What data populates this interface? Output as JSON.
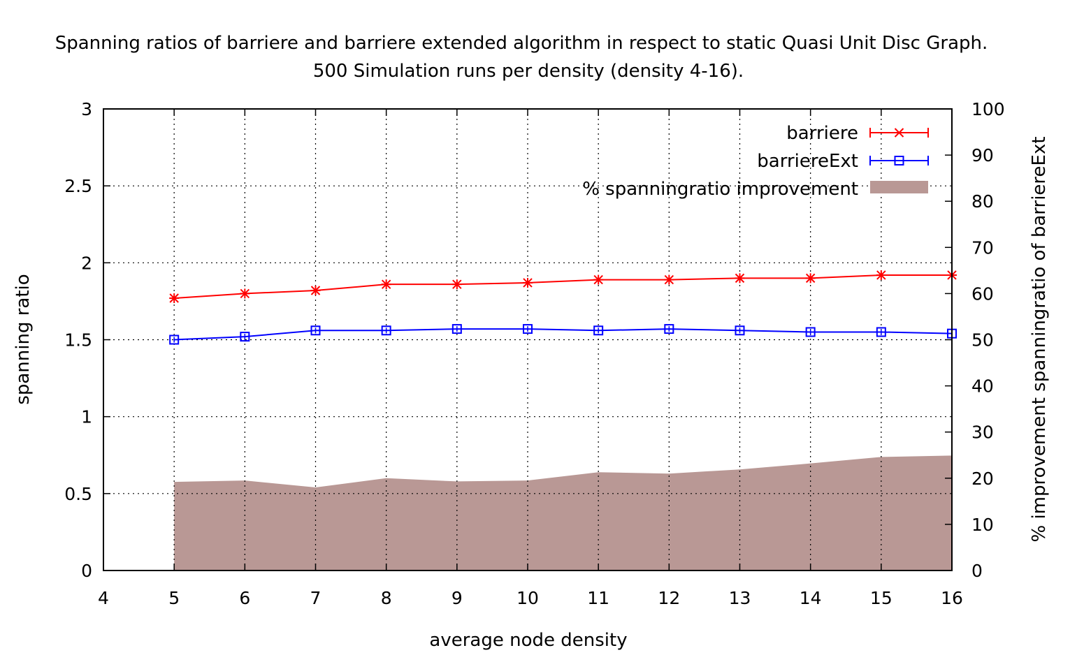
{
  "chart_data": {
    "type": "line",
    "title": "Spanning ratios of barriere and barriere extended algorithm in respect to static Quasi Unit Disc Graph.",
    "subtitle": "500 Simulation runs per density (density 4-16).",
    "xlabel": "average node density",
    "ylabel": "spanning ratio",
    "y2label": "% improvement spanningratio of barriereExt",
    "xlim": [
      4,
      16
    ],
    "ylim": [
      0,
      3
    ],
    "y2lim": [
      0,
      100
    ],
    "x_ticks": [
      "4",
      "5",
      "6",
      "7",
      "8",
      "9",
      "10",
      "11",
      "12",
      "13",
      "14",
      "15",
      "16"
    ],
    "y_ticks": [
      "0",
      "0.5",
      "1",
      "1.5",
      "2",
      "2.5",
      "3"
    ],
    "y2_ticks": [
      "0",
      "10",
      "20",
      "30",
      "40",
      "50",
      "60",
      "70",
      "80",
      "90",
      "100"
    ],
    "grid": true,
    "legend_position": "top-right",
    "x": [
      5,
      6,
      7,
      8,
      9,
      10,
      11,
      12,
      13,
      14,
      15,
      16
    ],
    "series": [
      {
        "name": "barriere",
        "axis": "left",
        "color": "#ff0000",
        "marker": "x-star",
        "values": [
          1.77,
          1.8,
          1.82,
          1.86,
          1.86,
          1.87,
          1.89,
          1.89,
          1.9,
          1.9,
          1.92,
          1.92
        ]
      },
      {
        "name": "barriereExt",
        "axis": "left",
        "color": "#0000ff",
        "marker": "square",
        "values": [
          1.5,
          1.52,
          1.56,
          1.56,
          1.57,
          1.57,
          1.56,
          1.57,
          1.56,
          1.55,
          1.55,
          1.54
        ]
      },
      {
        "name": "% spanningratio improvement",
        "axis": "right",
        "type": "area",
        "color": "#b99895",
        "values": [
          19.2,
          19.5,
          18.0,
          20.0,
          19.3,
          19.5,
          21.3,
          21.0,
          21.9,
          23.2,
          24.6,
          24.9
        ]
      }
    ]
  }
}
